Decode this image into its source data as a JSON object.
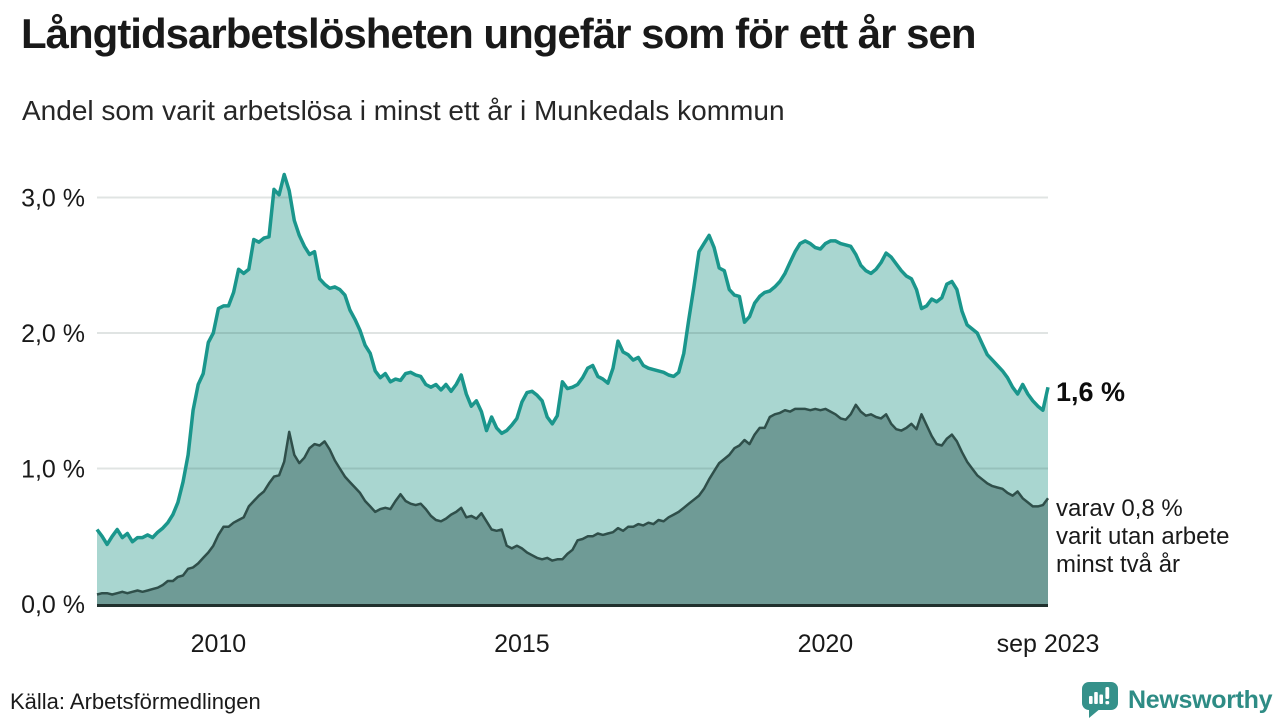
{
  "header": {
    "title": "Långtidsarbetslösheten ungefär som för ett år sen",
    "subtitle": "Andel som varit arbetslösa i minst ett år i Munkedals kommun"
  },
  "footer": {
    "source": "Källa: Arbetsförmedlingen",
    "logo_text": "Newsworthy"
  },
  "colors": {
    "title_text": "#191919",
    "gridline_on_white": "#dcdcdc",
    "axis_line": "#20302d",
    "logo_teal": "#35918a",
    "logo_text_teal": "#2e8c85"
  },
  "chart_data": {
    "type": "area",
    "title": "Långtidsarbetslösheten ungefär som för ett år sen",
    "subtitle": "Andel som varit arbetslösa i minst ett år i Munkedals kommun",
    "unit": "%",
    "frequency": "monthly",
    "x_start": "2008-01",
    "x_end": "2023-09",
    "ylim": [
      0,
      3.3
    ],
    "grid": "horizontal",
    "y_ticks": [
      {
        "label": "0,0 %",
        "value": 0.0
      },
      {
        "label": "1,0 %",
        "value": 1.0
      },
      {
        "label": "2,0 %",
        "value": 2.0
      },
      {
        "label": "3,0 %",
        "value": 3.0
      }
    ],
    "x_ticks": [
      {
        "label": "2010",
        "index": 24
      },
      {
        "label": "2015",
        "index": 84
      },
      {
        "label": "2020",
        "index": 144
      },
      {
        "label": "sep 2023",
        "index": 188
      }
    ],
    "annotations": {
      "primary": {
        "text": "1,6 %"
      },
      "secondary": {
        "lines": [
          "varav 0,8 %",
          "varit utan arbete",
          "minst två år"
        ]
      }
    },
    "series": [
      {
        "name": "Andel som varit arbetslösa i minst ett år",
        "color": "#1a968c",
        "fill": "#a9d6d0",
        "values": [
          0.55,
          0.5,
          0.44,
          0.5,
          0.55,
          0.49,
          0.52,
          0.46,
          0.49,
          0.49,
          0.51,
          0.49,
          0.53,
          0.56,
          0.6,
          0.66,
          0.75,
          0.9,
          1.1,
          1.43,
          1.62,
          1.7,
          1.93,
          2.0,
          2.18,
          2.2,
          2.2,
          2.3,
          2.47,
          2.44,
          2.47,
          2.69,
          2.67,
          2.7,
          2.71,
          3.06,
          3.02,
          3.17,
          3.05,
          2.83,
          2.72,
          2.64,
          2.58,
          2.6,
          2.4,
          2.36,
          2.33,
          2.34,
          2.32,
          2.28,
          2.17,
          2.1,
          2.02,
          1.91,
          1.85,
          1.72,
          1.67,
          1.7,
          1.64,
          1.66,
          1.65,
          1.7,
          1.71,
          1.69,
          1.68,
          1.62,
          1.6,
          1.62,
          1.58,
          1.62,
          1.57,
          1.62,
          1.69,
          1.55,
          1.46,
          1.5,
          1.42,
          1.28,
          1.38,
          1.3,
          1.26,
          1.28,
          1.32,
          1.37,
          1.49,
          1.56,
          1.57,
          1.54,
          1.5,
          1.38,
          1.33,
          1.39,
          1.64,
          1.59,
          1.6,
          1.62,
          1.67,
          1.74,
          1.76,
          1.68,
          1.66,
          1.63,
          1.74,
          1.94,
          1.86,
          1.84,
          1.8,
          1.82,
          1.76,
          1.74,
          1.73,
          1.72,
          1.71,
          1.69,
          1.68,
          1.71,
          1.85,
          2.1,
          2.34,
          2.6,
          2.66,
          2.72,
          2.63,
          2.48,
          2.46,
          2.32,
          2.28,
          2.27,
          2.08,
          2.12,
          2.22,
          2.27,
          2.3,
          2.31,
          2.34,
          2.38,
          2.44,
          2.52,
          2.6,
          2.66,
          2.68,
          2.66,
          2.63,
          2.62,
          2.66,
          2.68,
          2.68,
          2.66,
          2.65,
          2.64,
          2.58,
          2.5,
          2.46,
          2.44,
          2.47,
          2.52,
          2.59,
          2.56,
          2.51,
          2.46,
          2.42,
          2.4,
          2.32,
          2.18,
          2.2,
          2.25,
          2.23,
          2.26,
          2.36,
          2.38,
          2.32,
          2.16,
          2.06,
          2.03,
          2.0,
          1.92,
          1.84,
          1.8,
          1.76,
          1.72,
          1.67,
          1.6,
          1.55,
          1.62,
          1.55,
          1.5,
          1.46,
          1.43,
          1.6
        ]
      },
      {
        "name": "varav utan arbete minst två år",
        "color": "#2f4f4a",
        "fill": "#6f9b96",
        "values": [
          0.07,
          0.08,
          0.08,
          0.07,
          0.08,
          0.09,
          0.08,
          0.09,
          0.1,
          0.09,
          0.1,
          0.11,
          0.12,
          0.14,
          0.17,
          0.17,
          0.2,
          0.21,
          0.26,
          0.27,
          0.3,
          0.34,
          0.38,
          0.43,
          0.51,
          0.57,
          0.57,
          0.6,
          0.62,
          0.64,
          0.72,
          0.76,
          0.8,
          0.83,
          0.89,
          0.94,
          0.95,
          1.05,
          1.27,
          1.1,
          1.04,
          1.08,
          1.15,
          1.18,
          1.17,
          1.2,
          1.14,
          1.06,
          1.0,
          0.94,
          0.9,
          0.86,
          0.82,
          0.76,
          0.72,
          0.68,
          0.7,
          0.71,
          0.7,
          0.76,
          0.81,
          0.76,
          0.74,
          0.73,
          0.74,
          0.7,
          0.65,
          0.62,
          0.61,
          0.63,
          0.66,
          0.68,
          0.71,
          0.64,
          0.65,
          0.63,
          0.67,
          0.61,
          0.55,
          0.54,
          0.55,
          0.43,
          0.41,
          0.43,
          0.41,
          0.38,
          0.36,
          0.34,
          0.33,
          0.34,
          0.32,
          0.33,
          0.33,
          0.37,
          0.4,
          0.47,
          0.48,
          0.5,
          0.5,
          0.52,
          0.51,
          0.52,
          0.53,
          0.56,
          0.54,
          0.57,
          0.57,
          0.59,
          0.58,
          0.6,
          0.59,
          0.62,
          0.61,
          0.64,
          0.66,
          0.68,
          0.71,
          0.74,
          0.77,
          0.8,
          0.85,
          0.92,
          0.98,
          1.04,
          1.07,
          1.1,
          1.15,
          1.17,
          1.21,
          1.18,
          1.25,
          1.3,
          1.3,
          1.38,
          1.4,
          1.41,
          1.43,
          1.42,
          1.44,
          1.44,
          1.44,
          1.43,
          1.44,
          1.43,
          1.44,
          1.42,
          1.4,
          1.37,
          1.36,
          1.4,
          1.47,
          1.42,
          1.39,
          1.4,
          1.38,
          1.37,
          1.4,
          1.33,
          1.29,
          1.28,
          1.3,
          1.33,
          1.29,
          1.4,
          1.32,
          1.24,
          1.18,
          1.17,
          1.22,
          1.25,
          1.2,
          1.12,
          1.05,
          1.0,
          0.95,
          0.92,
          0.89,
          0.87,
          0.86,
          0.85,
          0.82,
          0.8,
          0.83,
          0.78,
          0.75,
          0.72,
          0.72,
          0.73,
          0.78
        ]
      }
    ]
  }
}
